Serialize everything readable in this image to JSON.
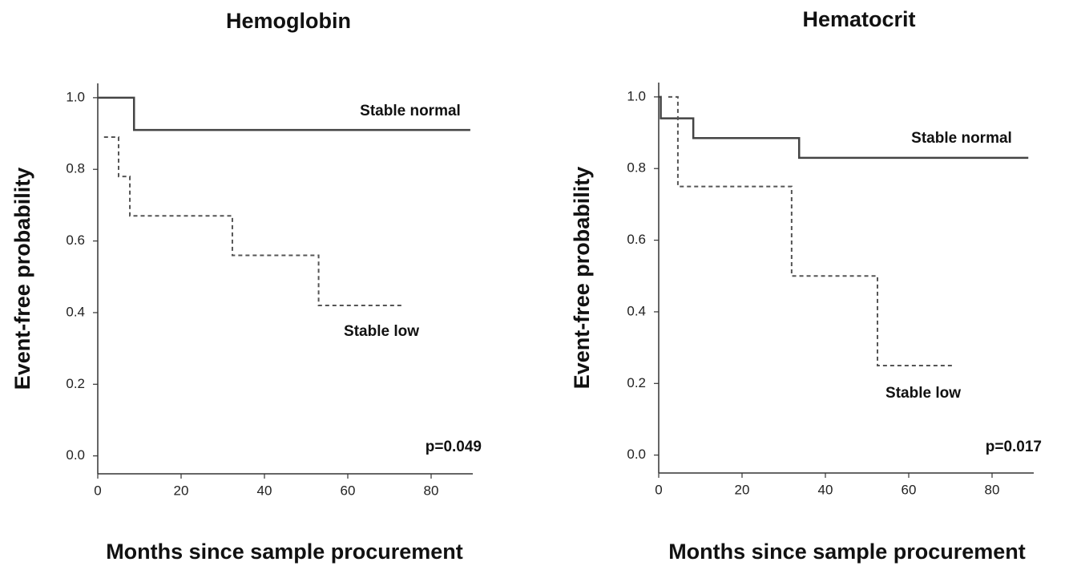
{
  "chart_data": [
    {
      "type": "step",
      "title": "Hemoglobin",
      "x_label": "Months since sample procurement",
      "y_label": "Event-free probability",
      "xlim": [
        0,
        90
      ],
      "ylim": [
        -0.05,
        1.04
      ],
      "xticks": [
        0,
        20,
        40,
        60,
        80
      ],
      "yticks": [
        {
          "value": 0,
          "label": "0.0"
        },
        0.2,
        0.4,
        0.6,
        0.8,
        {
          "value": 1,
          "label": "1.0"
        }
      ],
      "series": [
        {
          "name": "Stable normal",
          "color": "#444444",
          "line_style": "solid",
          "x": [
            0,
            8.7,
            89.4
          ],
          "values": [
            1.0,
            0.91,
            0.91
          ]
        },
        {
          "name": "Stable low",
          "color": "#555555",
          "line_style": "dashed",
          "x": [
            1.5,
            5,
            7.7,
            32.3,
            53,
            73
          ],
          "values": [
            0.89,
            0.78,
            0.67,
            0.56,
            0.42,
            0.42
          ]
        }
      ],
      "annotation": "p=0.049"
    },
    {
      "type": "step",
      "title": "Hematocrit",
      "x_label": "Months since sample procurement",
      "y_label": "Event-free probability",
      "xlim": [
        0,
        90
      ],
      "ylim": [
        -0.05,
        1.04
      ],
      "xticks": [
        0,
        20,
        40,
        60,
        80
      ],
      "yticks": [
        {
          "value": 0,
          "label": "0.0"
        },
        0.2,
        0.4,
        0.6,
        0.8,
        {
          "value": 1,
          "label": "1.0"
        }
      ],
      "series": [
        {
          "name": "Stable normal",
          "color": "#444444",
          "line_style": "solid",
          "x": [
            0,
            0.5,
            8.3,
            33.7,
            88.7
          ],
          "values": [
            1.0,
            0.94,
            0.885,
            0.83,
            0.83
          ]
        },
        {
          "name": "Stable low",
          "color": "#555555",
          "line_style": "dashed",
          "x": [
            2.3,
            4.6,
            31.9,
            52.5,
            70.4
          ],
          "values": [
            1.0,
            0.75,
            0.5,
            0.25,
            0.25
          ]
        }
      ],
      "annotation": "p=0.017"
    }
  ]
}
